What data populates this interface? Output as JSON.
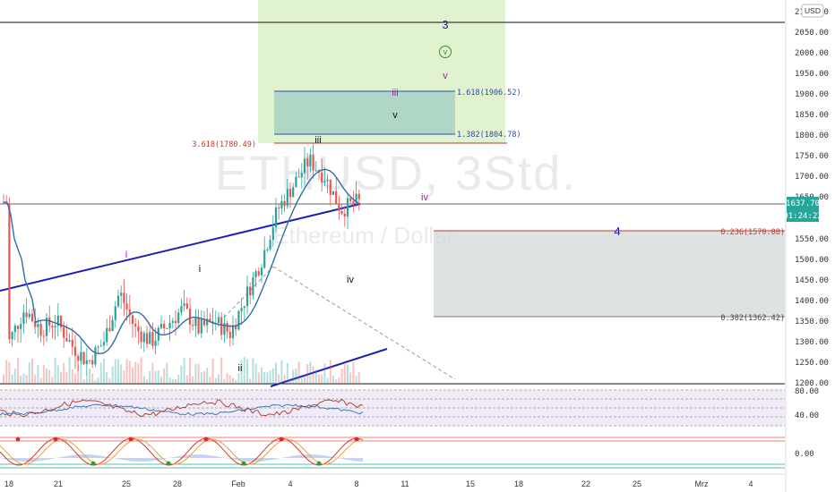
{
  "watermark": {
    "symbol": "ETHUSD, 3Std.",
    "name": "Ethereum / Dollar"
  },
  "currency_badge": "USD",
  "price_axis": {
    "ticks": [
      "2100.00",
      "2050.00",
      "2000.00",
      "1950.00",
      "1900.00",
      "1850.00",
      "1800.00",
      "1750.00",
      "1700.00",
      "1650.00",
      "1550.00",
      "1500.00",
      "1450.00",
      "1400.00",
      "1350.00",
      "1300.00",
      "1250.00",
      "1200.00"
    ],
    "current_price": "1637.70",
    "countdown": "01:24:22"
  },
  "time_axis": {
    "labels": [
      "18",
      "21",
      "25",
      "28",
      "Feb",
      "4",
      "8",
      "11",
      "15",
      "18",
      "22",
      "25",
      "Mrz",
      "4"
    ]
  },
  "oscillator_axis": {
    "rsi_ticks": [
      "80.00",
      "40.00"
    ],
    "stoch_ticks": [
      "0.00"
    ]
  },
  "fib_labels": {
    "ext_1618": "1.618(1906.52)",
    "ext_1382": "1.382(1804.78)",
    "ext_3618": "3.618(1780.49)",
    "ret_0236": "0.236(1570.08)",
    "ret_0382": "0.382(1362.42)"
  },
  "wave_labels": {
    "w3": "3",
    "wv_circle": "v",
    "wv_purple": "v",
    "wiii_purple": "iii",
    "wv_black": "v",
    "wiii_black": "iii",
    "wiv_purple": "iv",
    "w4": "4",
    "wi_purple": "i",
    "wi_black": "i",
    "wii": "ii",
    "wiv": "iv"
  },
  "colors": {
    "up": "#26a69a",
    "down": "#ef5350",
    "trend": "#1f1fb4",
    "green_zone": "#c9eaa5",
    "teal_zone": "#b5d8d0",
    "gray_zone": "#d4d8d8",
    "ma": "#2f6fa8"
  },
  "chart_data": {
    "type": "candlestick",
    "symbol": "ETHUSD",
    "timeframe": "3Std.",
    "y_axis_range": [
      1200,
      2100
    ],
    "last_price": 1637.7,
    "price_path": [
      [
        18,
        1300
      ],
      [
        19,
        1380
      ],
      [
        20,
        1330
      ],
      [
        21,
        1350
      ],
      [
        22,
        1290
      ],
      [
        23,
        1250
      ],
      [
        24,
        1300
      ],
      [
        25,
        1420
      ],
      [
        26,
        1330
      ],
      [
        27,
        1300
      ],
      [
        28,
        1340
      ],
      [
        29,
        1380
      ],
      [
        30,
        1330
      ],
      [
        31,
        1350
      ],
      [
        32,
        1320
      ],
      [
        33,
        1410
      ],
      [
        34,
        1500
      ],
      [
        35,
        1620
      ],
      [
        36,
        1680
      ],
      [
        37,
        1740
      ],
      [
        38,
        1700
      ],
      [
        39,
        1620
      ],
      [
        40,
        1637.7
      ]
    ],
    "levels": {
      "fib_1618": 1906.52,
      "fib_1382": 1804.78,
      "fib_3618": 1780.49,
      "fib_0236": 1570.08,
      "fib_0382": 1362.42
    }
  }
}
